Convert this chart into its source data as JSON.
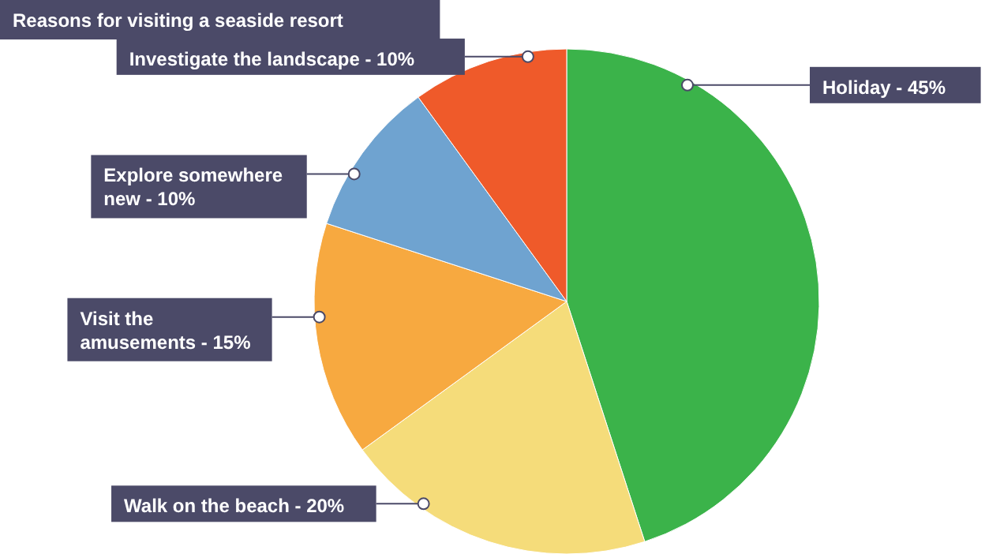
{
  "chart_data": {
    "type": "pie",
    "title": "Reasons for visiting a seaside resort",
    "categories": [
      "Holiday",
      "Walk on the beach",
      "Visit the amusements",
      "Explore somewhere new",
      "Investigate the landscape"
    ],
    "values": [
      45,
      20,
      15,
      10,
      10
    ],
    "value_labels": [
      "45%",
      "20%",
      "15%",
      "10%",
      "10%"
    ],
    "colors": [
      "#3bb34a",
      "#f5dc7a",
      "#f7a940",
      "#6fa3d0",
      "#ef5a2a"
    ]
  }
}
